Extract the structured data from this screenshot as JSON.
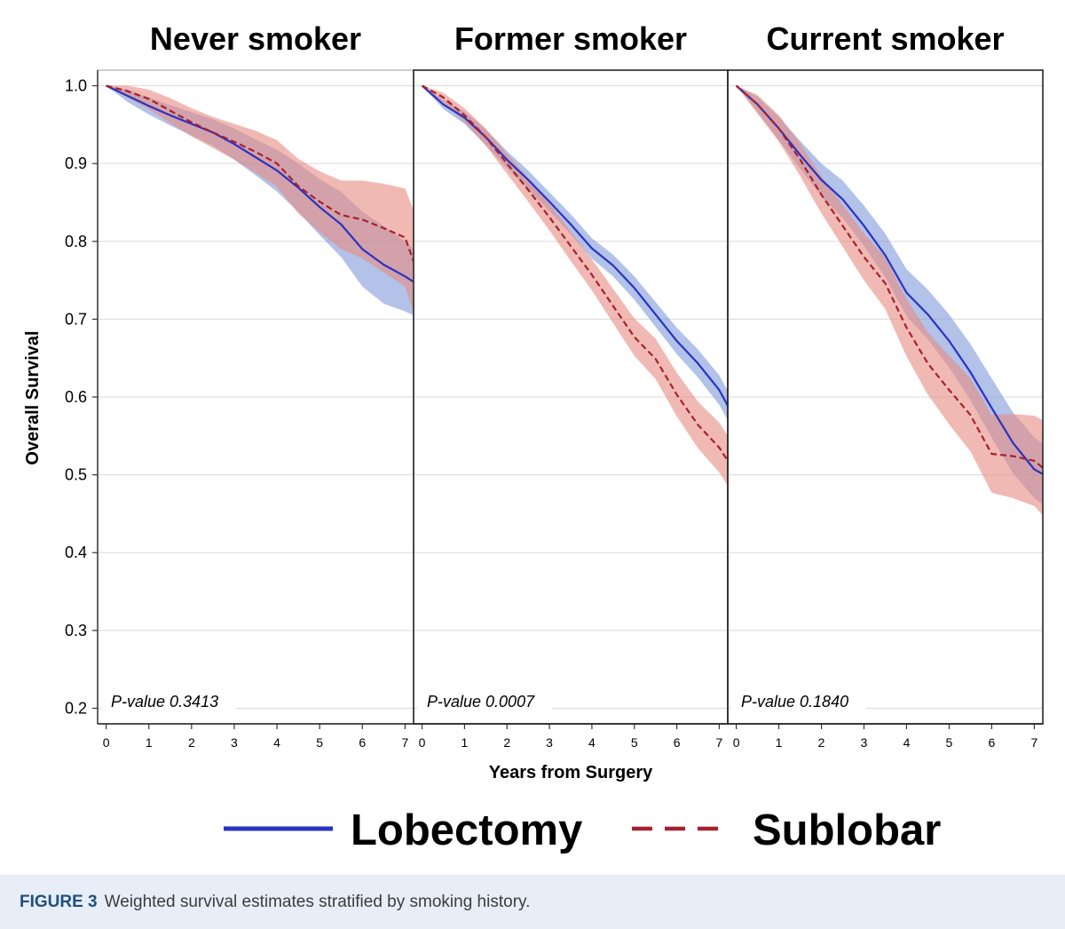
{
  "chart_data": {
    "type": "line",
    "xlabel": "Years from Surgery",
    "ylabel": "Overall Survival",
    "xlim": [
      -0.2,
      7.2
    ],
    "ylim": [
      0.18,
      1.02
    ],
    "xticks": [
      0,
      1,
      2,
      3,
      4,
      5,
      6,
      7
    ],
    "yticks": [
      "1.0",
      "0.9",
      "0.8",
      "0.7",
      "0.6",
      "0.5",
      "0.4",
      "0.3",
      "0.2"
    ],
    "grid": "horizontal",
    "legend": {
      "placement": "bottom",
      "entries": [
        {
          "name": "Lobectomy",
          "color": "#2b32c2",
          "band_color": "#7f9ad8",
          "dashed": false
        },
        {
          "name": "Sublobar",
          "color": "#a8202e",
          "band_color": "#e88a80",
          "dashed": true
        }
      ]
    },
    "x": [
      0,
      0.5,
      1,
      1.5,
      2,
      2.5,
      3,
      3.5,
      4,
      4.5,
      5,
      5.5,
      6,
      6.5,
      7,
      7.2
    ],
    "panels": [
      {
        "title": "Never smoker",
        "annotation": "P-value 0.3413",
        "series": [
          {
            "name": "Lobectomy",
            "values": [
              1.0,
              0.987,
              0.974,
              0.962,
              0.951,
              0.94,
              0.925,
              0.908,
              0.891,
              0.869,
              0.844,
              0.822,
              0.79,
              0.77,
              0.755,
              0.748
            ],
            "lower": [
              1.0,
              0.979,
              0.963,
              0.949,
              0.936,
              0.923,
              0.905,
              0.885,
              0.864,
              0.838,
              0.808,
              0.78,
              0.742,
              0.72,
              0.71,
              0.705
            ],
            "upper": [
              1.0,
              0.995,
              0.985,
              0.975,
              0.966,
              0.957,
              0.945,
              0.931,
              0.918,
              0.9,
              0.88,
              0.864,
              0.838,
              0.82,
              0.8,
              0.79
            ]
          },
          {
            "name": "Sublobar",
            "values": [
              1.0,
              0.993,
              0.983,
              0.968,
              0.953,
              0.94,
              0.928,
              0.915,
              0.9,
              0.871,
              0.851,
              0.834,
              0.828,
              0.817,
              0.805,
              0.774
            ],
            "lower": [
              1.0,
              0.985,
              0.97,
              0.952,
              0.935,
              0.92,
              0.905,
              0.888,
              0.87,
              0.836,
              0.812,
              0.79,
              0.778,
              0.76,
              0.742,
              0.708
            ],
            "upper": [
              1.0,
              1.0,
              0.995,
              0.984,
              0.971,
              0.96,
              0.951,
              0.942,
              0.93,
              0.906,
              0.89,
              0.878,
              0.878,
              0.874,
              0.868,
              0.84
            ]
          }
        ]
      },
      {
        "title": "Former smoker",
        "annotation": "P-value 0.0007",
        "series": [
          {
            "name": "Lobectomy",
            "values": [
              1.0,
              0.976,
              0.959,
              0.934,
              0.905,
              0.879,
              0.851,
              0.822,
              0.791,
              0.769,
              0.74,
              0.706,
              0.672,
              0.643,
              0.609,
              0.589
            ],
            "lower": [
              1.0,
              0.97,
              0.951,
              0.924,
              0.894,
              0.867,
              0.839,
              0.809,
              0.778,
              0.755,
              0.725,
              0.69,
              0.655,
              0.625,
              0.59,
              0.57
            ],
            "upper": [
              1.0,
              0.982,
              0.967,
              0.944,
              0.916,
              0.891,
              0.863,
              0.835,
              0.804,
              0.783,
              0.755,
              0.722,
              0.689,
              0.661,
              0.628,
              0.608
            ]
          },
          {
            "name": "Sublobar",
            "values": [
              1.0,
              0.985,
              0.962,
              0.934,
              0.9,
              0.866,
              0.831,
              0.794,
              0.757,
              0.717,
              0.677,
              0.649,
              0.603,
              0.564,
              0.535,
              0.518
            ],
            "lower": [
              1.0,
              0.979,
              0.953,
              0.923,
              0.887,
              0.851,
              0.814,
              0.775,
              0.737,
              0.695,
              0.653,
              0.623,
              0.575,
              0.534,
              0.503,
              0.486
            ],
            "upper": [
              1.0,
              0.991,
              0.971,
              0.945,
              0.913,
              0.881,
              0.848,
              0.813,
              0.777,
              0.739,
              0.701,
              0.675,
              0.631,
              0.594,
              0.567,
              0.55
            ]
          }
        ]
      },
      {
        "title": "Current smoker",
        "annotation": "P-value 0.1840",
        "series": [
          {
            "name": "Lobectomy",
            "values": [
              1.0,
              0.976,
              0.945,
              0.911,
              0.879,
              0.854,
              0.82,
              0.782,
              0.734,
              0.706,
              0.672,
              0.632,
              0.586,
              0.541,
              0.507,
              0.501
            ],
            "lower": [
              1.0,
              0.966,
              0.93,
              0.893,
              0.858,
              0.83,
              0.794,
              0.754,
              0.704,
              0.674,
              0.638,
              0.596,
              0.548,
              0.502,
              0.47,
              0.462
            ],
            "upper": [
              1.0,
              0.986,
              0.96,
              0.929,
              0.9,
              0.878,
              0.846,
              0.81,
              0.764,
              0.738,
              0.706,
              0.668,
              0.624,
              0.58,
              0.548,
              0.54
            ]
          },
          {
            "name": "Sublobar",
            "values": [
              1.0,
              0.976,
              0.945,
              0.905,
              0.86,
              0.82,
              0.78,
              0.746,
              0.689,
              0.643,
              0.609,
              0.577,
              0.527,
              0.524,
              0.518,
              0.509
            ],
            "lower": [
              1.0,
              0.964,
              0.928,
              0.884,
              0.836,
              0.793,
              0.75,
              0.713,
              0.652,
              0.603,
              0.565,
              0.53,
              0.477,
              0.47,
              0.46,
              0.448
            ],
            "upper": [
              1.0,
              0.988,
              0.962,
              0.926,
              0.884,
              0.847,
              0.81,
              0.779,
              0.726,
              0.683,
              0.653,
              0.624,
              0.577,
              0.578,
              0.576,
              0.57
            ]
          }
        ]
      }
    ]
  },
  "caption": {
    "label": "FIGURE 3",
    "text": "Weighted survival estimates stratified by smoking history."
  }
}
